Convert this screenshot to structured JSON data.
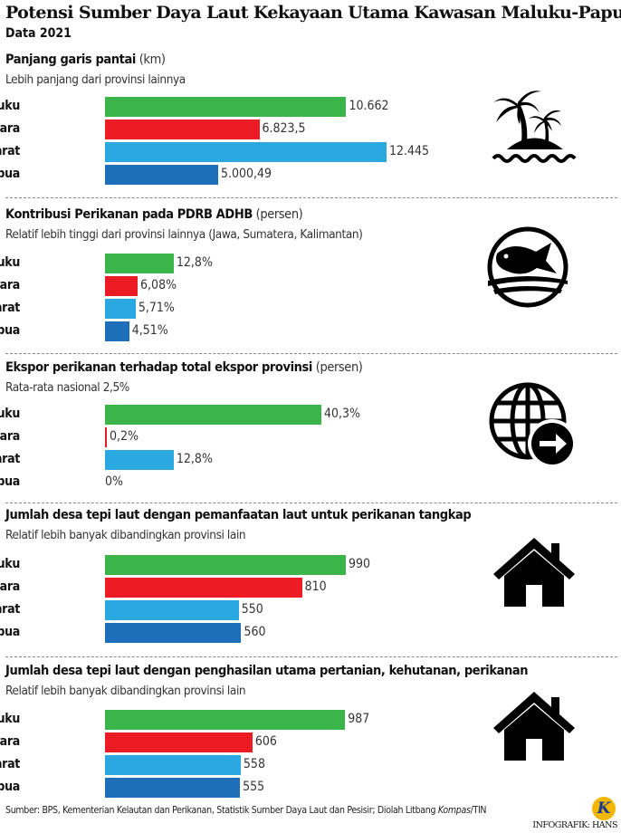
{
  "title": "Potensi Sumber Daya Laut Kekayaan Utama Kawasan Maluku-Papua",
  "subtitle": "Data 2021",
  "colors": {
    "Maluku": "#3bb54a",
    "Maluku Utara": "#ed1c24",
    "Papua Barat": "#29a9e0",
    "Papua": "#1c6fb8"
  },
  "chart_data": [
    {
      "type": "bar",
      "orientation": "horizontal",
      "title": "Panjang garis pantai",
      "unit": "(km)",
      "note": "Lebih panjang dari provinsi lainnya",
      "icon": "palm-island-icon",
      "categories": [
        "Maluku",
        "Maluku Utara",
        "Papua Barat",
        "Papua"
      ],
      "values": [
        10662,
        6823.5,
        12445,
        5000.49
      ],
      "labels": [
        "10.662",
        "6.823,5",
        "12.445",
        "5.000,49"
      ],
      "xlim": [
        0,
        12445
      ]
    },
    {
      "type": "bar",
      "orientation": "horizontal",
      "title": "Kontribusi Perikanan pada PDRB ADHB",
      "unit": "(persen)",
      "note": "Relatif lebih tinggi dari provinsi lainnya (Jawa, Sumatera, Kalimantan)",
      "icon": "fish-wave-icon",
      "categories": [
        "Maluku",
        "Maluku Utara",
        "Papua Barat",
        "Papua"
      ],
      "values": [
        12.8,
        6.08,
        5.71,
        4.51
      ],
      "labels": [
        "12,8%",
        "6,08%",
        "5,71%",
        "4,51%"
      ],
      "xlim": [
        0,
        40.3
      ]
    },
    {
      "type": "bar",
      "orientation": "horizontal",
      "title": "Ekspor perikanan terhadap total ekspor provinsi",
      "unit": "(persen)",
      "note": "Rata-rata nasional 2,5%",
      "icon": "globe-export-icon",
      "categories": [
        "Maluku",
        "Maluku Utara",
        "Papua Barat",
        "Papua"
      ],
      "values": [
        40.3,
        0.2,
        12.8,
        0
      ],
      "labels": [
        "40,3%",
        "0,2%",
        "12,8%",
        "0%"
      ],
      "xlim": [
        0,
        40.3
      ]
    },
    {
      "type": "bar",
      "orientation": "horizontal",
      "title": "Jumlah desa tepi laut dengan pemanfaatan laut untuk perikanan tangkap",
      "unit": "",
      "note": "Relatif lebih banyak dibandingkan provinsi lain",
      "icon": "house-icon",
      "categories": [
        "Maluku",
        "Maluku Utara",
        "Papua Barat",
        "Papua"
      ],
      "values": [
        990,
        810,
        550,
        560
      ],
      "labels": [
        "990",
        "810",
        "550",
        "560"
      ],
      "xlim": [
        0,
        990
      ]
    },
    {
      "type": "bar",
      "orientation": "horizontal",
      "title": "Jumlah desa tepi laut dengan penghasilan utama pertanian, kehutanan, perikanan",
      "unit": "",
      "note": "Relatif lebih banyak dibandingkan provinsi lain",
      "icon": "house-icon",
      "categories": [
        "Maluku",
        "Maluku Utara",
        "Papua Barat",
        "Papua"
      ],
      "values": [
        987,
        606,
        558,
        555
      ],
      "labels": [
        "987",
        "606",
        "558",
        "555"
      ],
      "xlim": [
        0,
        990
      ]
    }
  ],
  "footer": {
    "source": "Sumber: BPS, Kementerian Kelautan dan Perikanan, Statistik Sumber Daya Laut dan Pesisir; Diolah Litbang ",
    "source_italic": "Kompas",
    "source_end": "/TIN",
    "credit": "INFOGRAFIK: HANS",
    "logo": "K"
  }
}
